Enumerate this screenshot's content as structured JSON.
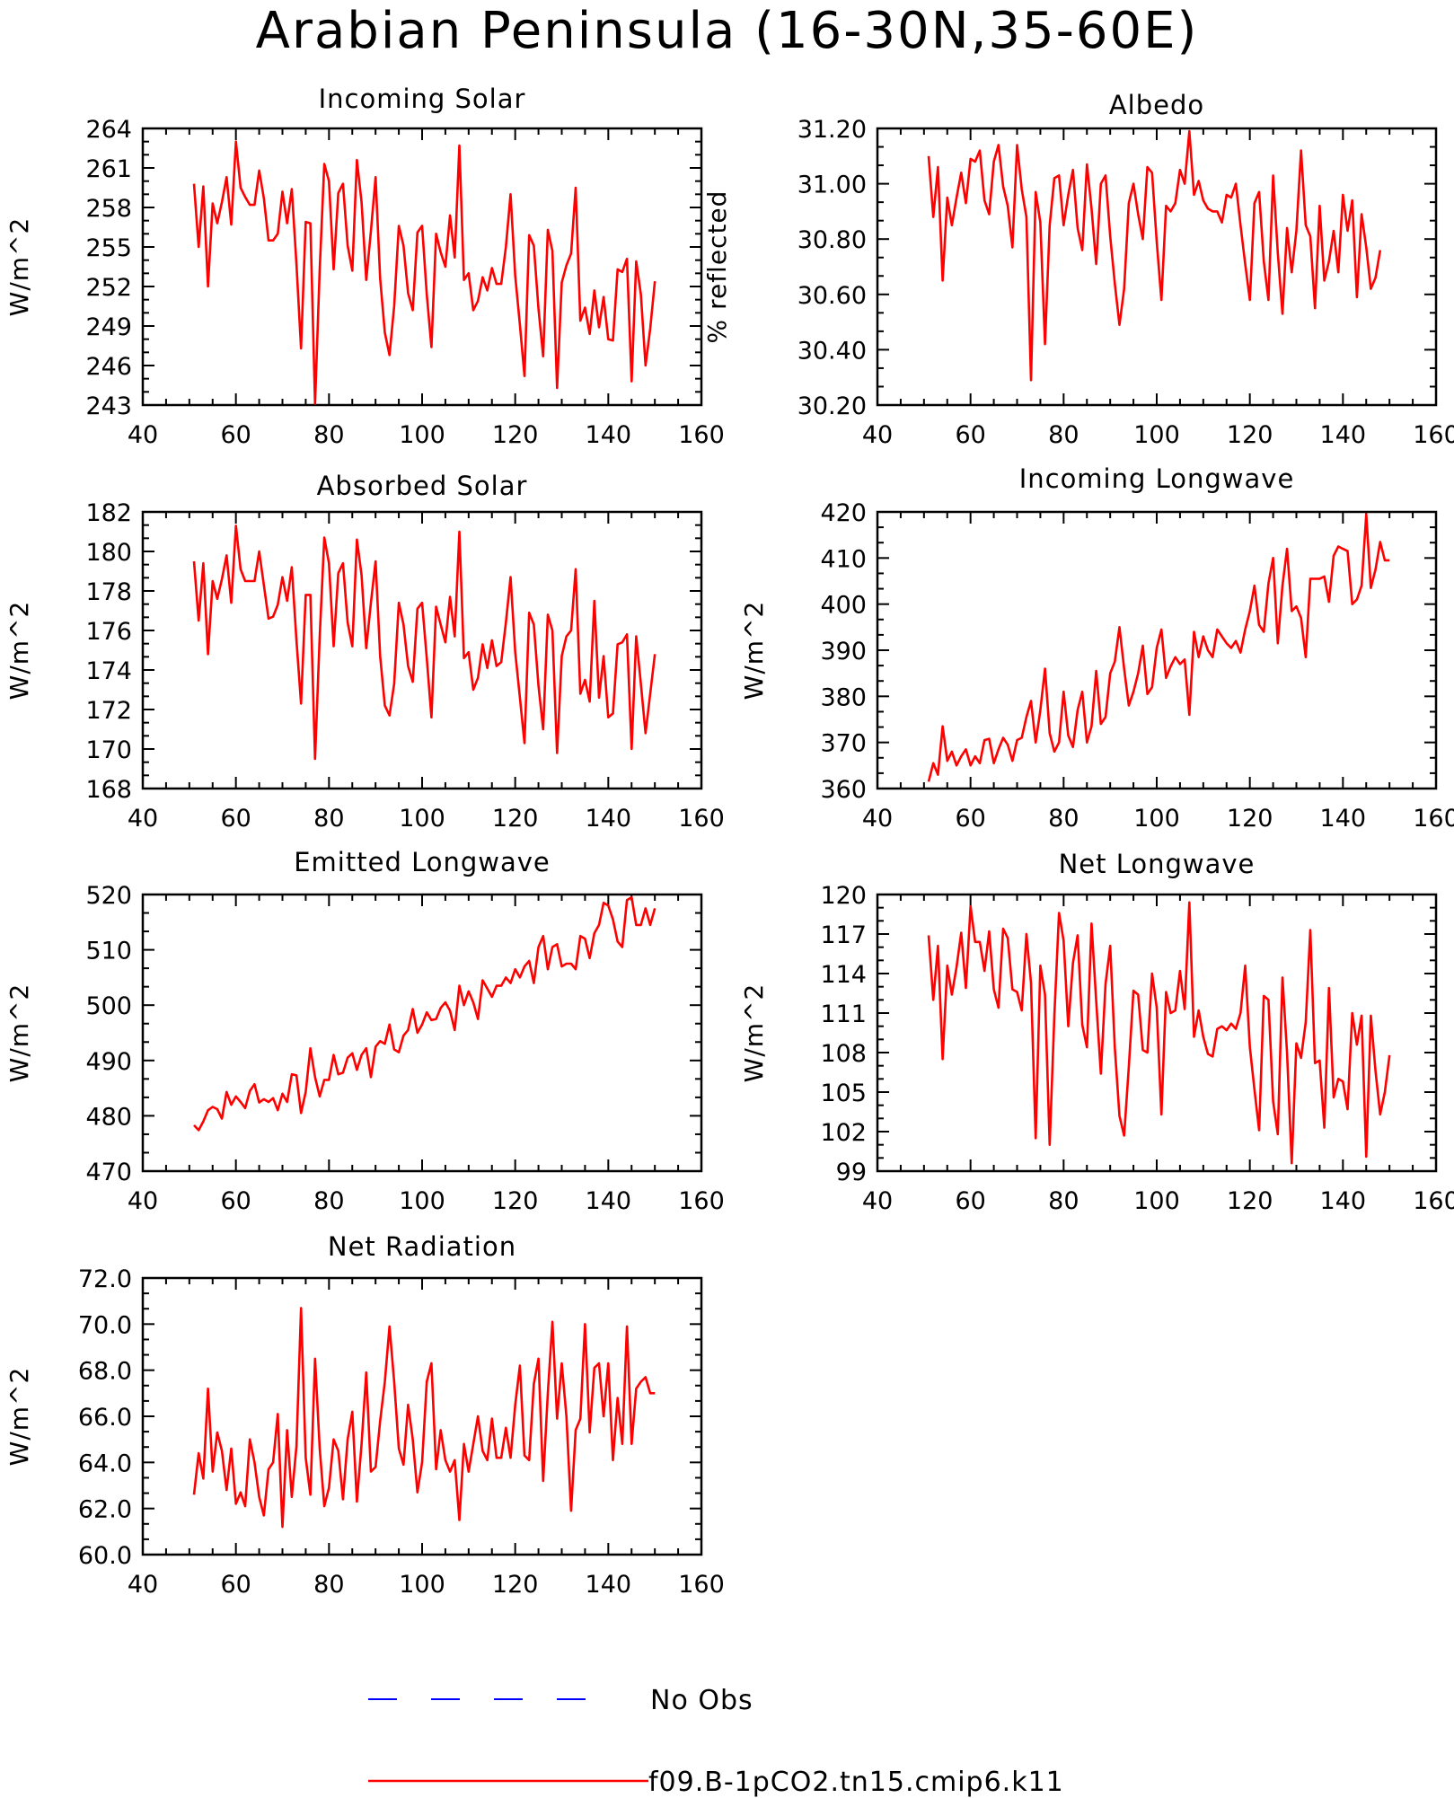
{
  "title": "Arabian Peninsula (16-30N,35-60E)",
  "colors": {
    "model": "#ff0000",
    "obs": "#0000ff",
    "axis": "#000000"
  },
  "legend": [
    {
      "label": "No Obs",
      "style": "dashed",
      "color": "#0000ff"
    },
    {
      "label": "f09.B-1pCO2.tn15.cmip6.k11",
      "style": "solid",
      "color": "#ff0000"
    }
  ],
  "chart_data": [
    {
      "type": "line",
      "title": "Incoming Solar",
      "ylabel": "W/m^2",
      "xlim": [
        40,
        160
      ],
      "xticks": [
        40,
        60,
        80,
        100,
        120,
        140,
        160
      ],
      "ylim": [
        243,
        264
      ],
      "yticks": [
        "243",
        "246",
        "249",
        "252",
        "255",
        "258",
        "261",
        "264"
      ],
      "series": [
        {
          "name": "f09.B-1pCO2.tn15.cmip6.k11",
          "x_start": 51,
          "values": [
            259.8,
            255.0,
            259.6,
            252.0,
            258.3,
            256.8,
            258.4,
            260.3,
            256.7,
            263.0,
            259.5,
            258.8,
            258.2,
            258.2,
            260.8,
            258.7,
            255.5,
            255.5,
            256.0,
            259.2,
            256.8,
            259.4,
            253.7,
            247.3,
            256.9,
            256.8,
            243.1,
            253.3,
            261.3,
            260.0,
            253.3,
            259.1,
            259.8,
            255.1,
            253.2,
            261.6,
            258.4,
            252.5,
            256.2,
            260.3,
            252.6,
            248.5,
            246.8,
            250.5,
            256.6,
            255.1,
            251.5,
            250.2,
            256.1,
            256.6,
            251.4,
            247.4,
            256.0,
            254.6,
            253.5,
            257.4,
            254.2,
            262.7,
            252.5,
            253.0,
            250.2,
            250.9,
            252.7,
            251.7,
            253.4,
            252.2,
            252.2,
            255.0,
            259.0,
            252.8,
            249.1,
            245.2,
            255.9,
            255.1,
            250.3,
            246.7,
            256.3,
            254.7,
            244.3,
            252.3,
            253.6,
            254.5,
            259.5,
            249.4,
            250.4,
            248.4,
            251.7,
            248.9,
            251.2,
            248.0,
            247.9,
            253.3,
            253.1,
            254.1,
            244.8,
            253.9,
            251.4,
            246.0,
            248.8,
            252.4
          ]
        }
      ]
    },
    {
      "type": "line",
      "title": "Albedo",
      "ylabel": "% reflected",
      "xlim": [
        40,
        160
      ],
      "xticks": [
        40,
        60,
        80,
        100,
        120,
        140,
        160
      ],
      "ylim": [
        30.2,
        31.2
      ],
      "yticks": [
        "30.20",
        "30.40",
        "30.60",
        "30.80",
        "31.00",
        "31.20"
      ],
      "series": [
        {
          "name": "f09.B-1pCO2.tn15.cmip6.k11",
          "x_start": 51,
          "values": [
            31.1,
            30.88,
            31.06,
            30.65,
            30.95,
            30.85,
            30.95,
            31.04,
            30.93,
            31.09,
            31.08,
            31.12,
            30.94,
            30.89,
            31.08,
            31.14,
            30.99,
            30.92,
            30.77,
            31.14,
            30.98,
            30.88,
            30.29,
            30.97,
            30.86,
            30.42,
            30.85,
            31.02,
            31.03,
            30.85,
            30.96,
            31.05,
            30.84,
            30.76,
            31.07,
            30.91,
            30.71,
            31.0,
            31.03,
            30.81,
            30.64,
            30.49,
            30.62,
            30.93,
            31.0,
            30.89,
            30.8,
            31.06,
            31.04,
            30.79,
            30.58,
            30.92,
            30.9,
            30.93,
            31.05,
            31.0,
            31.19,
            30.96,
            31.01,
            30.94,
            30.91,
            30.9,
            30.9,
            30.86,
            30.96,
            30.95,
            31.0,
            30.85,
            30.71,
            30.58,
            30.93,
            30.97,
            30.72,
            30.58,
            31.03,
            30.75,
            30.53,
            30.84,
            30.68,
            30.83,
            31.12,
            30.85,
            30.81,
            30.55,
            30.92,
            30.65,
            30.72,
            30.83,
            30.68,
            30.96,
            30.83,
            30.94,
            30.59,
            30.89,
            30.77,
            30.62,
            30.66,
            30.76
          ]
        }
      ]
    },
    {
      "type": "line",
      "title": "Absorbed Solar",
      "ylabel": "W/m^2",
      "xlim": [
        40,
        160
      ],
      "xticks": [
        40,
        60,
        80,
        100,
        120,
        140,
        160
      ],
      "ylim": [
        168,
        182
      ],
      "yticks": [
        "168",
        "170",
        "172",
        "174",
        "176",
        "178",
        "180",
        "182"
      ],
      "series": [
        {
          "name": "f09.B-1pCO2.tn15.cmip6.k11",
          "x_start": 51,
          "values": [
            179.5,
            176.5,
            179.4,
            174.8,
            178.5,
            177.6,
            178.6,
            179.8,
            177.4,
            181.3,
            179.1,
            178.5,
            178.5,
            178.5,
            180.0,
            178.3,
            176.6,
            176.7,
            177.3,
            178.7,
            177.5,
            179.2,
            175.5,
            172.3,
            177.8,
            177.8,
            169.5,
            175.7,
            180.7,
            179.4,
            175.2,
            178.9,
            179.4,
            176.4,
            175.2,
            180.6,
            178.8,
            175.1,
            177.4,
            179.5,
            174.7,
            172.2,
            171.7,
            173.3,
            177.4,
            176.3,
            174.2,
            173.4,
            177.1,
            177.4,
            174.6,
            171.6,
            177.2,
            176.3,
            175.4,
            177.7,
            175.7,
            181.0,
            174.6,
            174.9,
            173.0,
            173.6,
            175.3,
            174.1,
            175.5,
            174.2,
            174.4,
            176.4,
            178.7,
            174.9,
            172.6,
            170.3,
            176.9,
            176.3,
            173.2,
            171.0,
            176.8,
            176.0,
            169.8,
            174.7,
            175.7,
            176.0,
            179.1,
            172.8,
            173.5,
            172.4,
            177.5,
            172.6,
            174.7,
            171.6,
            171.8,
            175.3,
            175.4,
            175.8,
            170.0,
            175.7,
            173.3,
            170.8,
            172.8,
            174.8
          ]
        }
      ]
    },
    {
      "type": "line",
      "title": "Incoming Longwave",
      "ylabel": "W/m^2",
      "xlim": [
        40,
        160
      ],
      "xticks": [
        40,
        60,
        80,
        100,
        120,
        140,
        160
      ],
      "ylim": [
        360,
        420
      ],
      "yticks": [
        "360",
        "370",
        "380",
        "390",
        "400",
        "410",
        "420"
      ],
      "series": [
        {
          "name": "f09.B-1pCO2.tn15.cmip6.k11",
          "x_start": 51,
          "values": [
            361.5,
            365.5,
            363.0,
            373.5,
            366.0,
            368.0,
            365.0,
            367.0,
            368.5,
            365.0,
            367.0,
            365.5,
            370.5,
            370.8,
            365.5,
            368.5,
            371.0,
            369.5,
            366.0,
            370.5,
            371.0,
            375.5,
            379.0,
            370.0,
            377.0,
            386.0,
            372.0,
            368.0,
            370.0,
            381.0,
            371.5,
            369.0,
            377.0,
            381.0,
            370.0,
            373.5,
            385.5,
            374.0,
            375.5,
            385.0,
            387.5,
            395.0,
            386.0,
            378.0,
            381.0,
            385.0,
            391.0,
            380.5,
            382.0,
            390.5,
            394.5,
            384.0,
            386.5,
            388.5,
            387.0,
            388.0,
            376.0,
            394.0,
            388.5,
            393.0,
            390.0,
            388.5,
            394.5,
            393.0,
            391.5,
            390.5,
            392.0,
            389.5,
            394.5,
            398.5,
            404.0,
            395.5,
            394.0,
            404.5,
            410.0,
            391.5,
            404.0,
            412.0,
            398.5,
            399.5,
            397.0,
            388.5,
            405.5,
            405.5,
            405.5,
            406.0,
            400.5,
            410.5,
            412.5,
            412.0,
            411.5,
            400.0,
            401.0,
            404.0,
            419.5,
            403.5,
            407.5,
            413.5,
            409.5,
            409.5
          ]
        }
      ]
    },
    {
      "type": "line",
      "title": "Emitted Longwave",
      "ylabel": "W/m^2",
      "xlim": [
        40,
        160
      ],
      "xticks": [
        40,
        60,
        80,
        100,
        120,
        140,
        160
      ],
      "ylim": [
        470,
        520
      ],
      "yticks": [
        "470",
        "480",
        "490",
        "500",
        "510",
        "520"
      ],
      "series": [
        {
          "name": "f09.B-1pCO2.tn15.cmip6.k11",
          "x_start": 51,
          "values": [
            478.3,
            477.4,
            479.0,
            481.0,
            481.6,
            481.2,
            479.5,
            484.3,
            482.0,
            483.5,
            482.5,
            481.4,
            484.5,
            485.7,
            482.4,
            483.0,
            482.5,
            483.2,
            481.0,
            484.0,
            482.5,
            487.5,
            487.3,
            480.5,
            484.3,
            492.2,
            487.0,
            483.5,
            486.5,
            486.5,
            491.0,
            487.5,
            487.8,
            490.5,
            491.3,
            488.3,
            491.0,
            492.2,
            487.0,
            492.5,
            493.5,
            493.0,
            496.5,
            492.0,
            491.5,
            494.5,
            495.5,
            499.3,
            495.0,
            496.5,
            498.7,
            497.3,
            497.5,
            499.5,
            500.5,
            499.0,
            495.5,
            503.5,
            500.0,
            502.5,
            500.5,
            497.5,
            504.5,
            503.0,
            501.5,
            503.5,
            503.5,
            505.0,
            504.0,
            506.5,
            505.0,
            507.0,
            508.0,
            504.0,
            510.5,
            512.5,
            506.5,
            510.5,
            511.0,
            507.0,
            507.5,
            507.5,
            506.5,
            512.5,
            512.0,
            508.5,
            513.0,
            514.5,
            518.5,
            518.0,
            515.5,
            511.5,
            510.5,
            519.0,
            519.5,
            514.5,
            514.5,
            517.5,
            514.5,
            517.5
          ]
        }
      ]
    },
    {
      "type": "line",
      "title": "Net Longwave",
      "ylabel": "W/m^2",
      "xlim": [
        40,
        160
      ],
      "xticks": [
        40,
        60,
        80,
        100,
        120,
        140,
        160
      ],
      "ylim": [
        99,
        120
      ],
      "yticks": [
        "99",
        "102",
        "105",
        "108",
        "111",
        "114",
        "117",
        "120"
      ],
      "series": [
        {
          "name": "f09.B-1pCO2.tn15.cmip6.k11",
          "x_start": 51,
          "values": [
            116.9,
            112.0,
            116.1,
            107.5,
            114.6,
            112.4,
            114.5,
            117.1,
            112.9,
            119.1,
            116.4,
            116.4,
            114.2,
            117.2,
            112.8,
            111.4,
            117.4,
            116.7,
            112.8,
            112.6,
            111.2,
            117.0,
            113.3,
            101.5,
            114.6,
            112.4,
            101.0,
            110.8,
            118.6,
            116.5,
            110.0,
            114.8,
            116.9,
            110.1,
            108.4,
            117.8,
            111.9,
            106.4,
            113.2,
            116.1,
            108.4,
            103.2,
            101.7,
            106.9,
            112.7,
            112.4,
            108.2,
            108.0,
            114.0,
            111.4,
            103.3,
            112.6,
            111.0,
            111.2,
            114.2,
            111.3,
            119.4,
            109.2,
            111.2,
            109.2,
            107.9,
            107.7,
            109.8,
            110.0,
            109.7,
            110.2,
            109.8,
            111.0,
            114.6,
            108.4,
            105.2,
            102.1,
            112.3,
            112.0,
            104.3,
            101.8,
            113.7,
            108.0,
            99.6,
            108.7,
            107.6,
            110.3,
            117.3,
            107.2,
            107.4,
            102.3,
            112.9,
            104.6,
            106.0,
            105.8,
            103.7,
            111.0,
            108.6,
            110.8,
            100.1,
            110.8,
            106.6,
            103.3,
            105.0,
            107.8
          ]
        }
      ]
    },
    {
      "type": "line",
      "title": "Net Radiation",
      "ylabel": "W/m^2",
      "xlim": [
        40,
        160
      ],
      "xticks": [
        40,
        60,
        80,
        100,
        120,
        140,
        160
      ],
      "ylim": [
        60.0,
        72.0
      ],
      "yticks": [
        "60.0",
        "62.0",
        "64.0",
        "66.0",
        "68.0",
        "70.0",
        "72.0"
      ],
      "series": [
        {
          "name": "f09.B-1pCO2.tn15.cmip6.k11",
          "x_start": 51,
          "values": [
            62.6,
            64.4,
            63.3,
            67.2,
            63.6,
            65.3,
            64.5,
            62.8,
            64.6,
            62.2,
            62.7,
            62.1,
            65.0,
            64.0,
            62.5,
            61.7,
            63.7,
            64.0,
            66.1,
            61.2,
            65.4,
            62.5,
            64.7,
            70.7,
            64.2,
            62.6,
            68.5,
            64.6,
            62.1,
            62.9,
            65.0,
            64.5,
            62.4,
            65.0,
            66.2,
            62.3,
            64.8,
            67.9,
            63.6,
            63.8,
            65.8,
            67.5,
            69.9,
            67.5,
            64.6,
            63.9,
            66.5,
            65.0,
            62.7,
            64.0,
            67.5,
            68.3,
            63.7,
            65.4,
            64.1,
            63.6,
            64.1,
            61.5,
            64.8,
            63.6,
            64.8,
            66.0,
            64.5,
            64.1,
            65.9,
            64.2,
            64.2,
            65.5,
            64.2,
            66.5,
            68.2,
            64.3,
            64.1,
            67.4,
            68.5,
            63.2,
            67.0,
            70.1,
            65.9,
            68.3,
            66.0,
            61.9,
            65.4,
            65.9,
            70.0,
            65.3,
            68.1,
            68.3,
            66.0,
            68.3,
            64.1,
            66.8,
            64.8,
            69.9,
            64.8,
            67.2,
            67.5,
            67.7,
            67.0,
            67.0
          ]
        }
      ]
    }
  ]
}
